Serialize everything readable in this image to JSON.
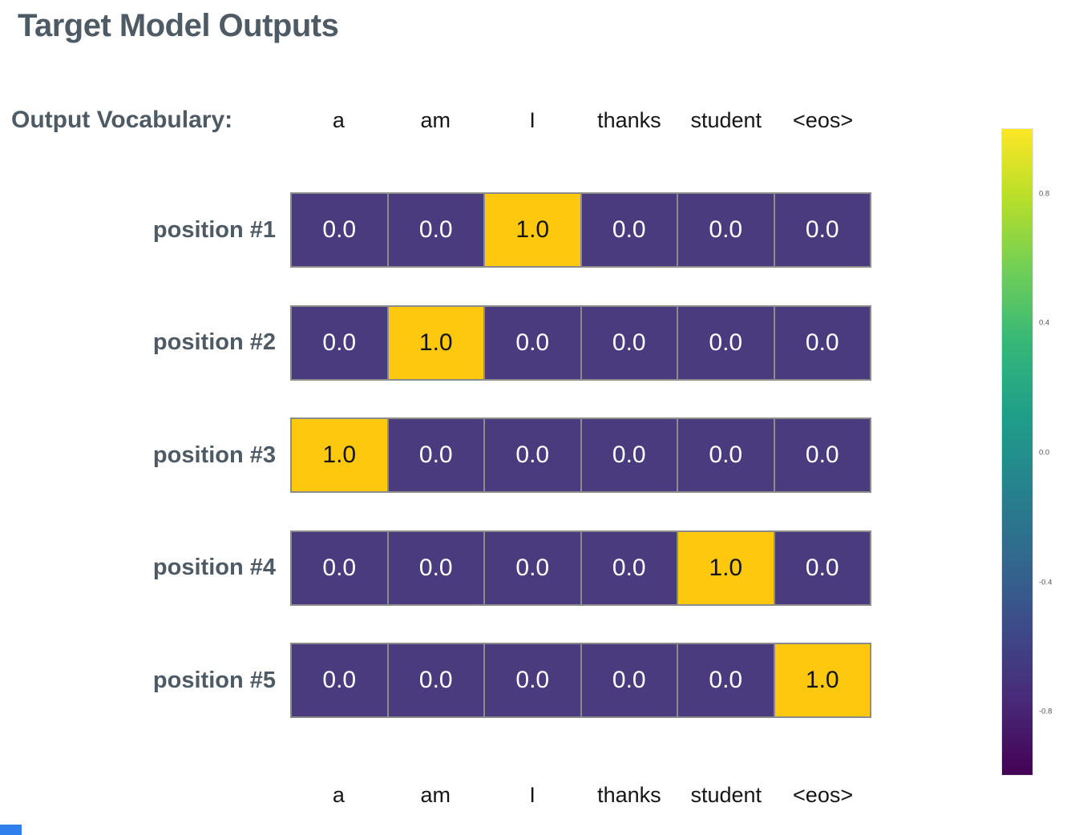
{
  "title": "Target Model Outputs",
  "vocab_row": {
    "label": "Output Vocabulary:"
  },
  "chart_data": {
    "type": "heatmap",
    "title": "Target Model Outputs",
    "columns": [
      "a",
      "am",
      "I",
      "thanks",
      "student",
      "<eos>"
    ],
    "columns_shown_twice": true,
    "rows": [
      "position #1",
      "position #2",
      "position #3",
      "position #4",
      "position #5"
    ],
    "values": [
      [
        0.0,
        0.0,
        1.0,
        0.0,
        0.0,
        0.0
      ],
      [
        0.0,
        1.0,
        0.0,
        0.0,
        0.0,
        0.0
      ],
      [
        1.0,
        0.0,
        0.0,
        0.0,
        0.0,
        0.0
      ],
      [
        0.0,
        0.0,
        0.0,
        0.0,
        1.0,
        0.0
      ],
      [
        0.0,
        0.0,
        0.0,
        0.0,
        0.0,
        1.0
      ]
    ],
    "value_decimals": 1,
    "colorbar": {
      "position": "right",
      "colormap": "viridis",
      "range": [
        -1,
        1
      ],
      "ticks": [
        0.8,
        0.4,
        0.0,
        -0.4,
        -0.8
      ]
    },
    "colors": {
      "cell_low": "#4a3a7e",
      "cell_high": "#fdc80d",
      "cell_text_low": "#ffffff",
      "cell_text_high": "#141414",
      "grid_line": "#8b8b8b",
      "heading": "#4e5a64",
      "column_label_text": "#161616",
      "colorbar_tick_text": "#555555",
      "viridis_stops": [
        "#fde725",
        "#b5de2b",
        "#6ece58",
        "#35b779",
        "#1f9e89",
        "#26828e",
        "#31688e",
        "#3e4989",
        "#482878",
        "#440154"
      ]
    }
  },
  "corner_mark": {
    "color": "#2f80ed"
  }
}
